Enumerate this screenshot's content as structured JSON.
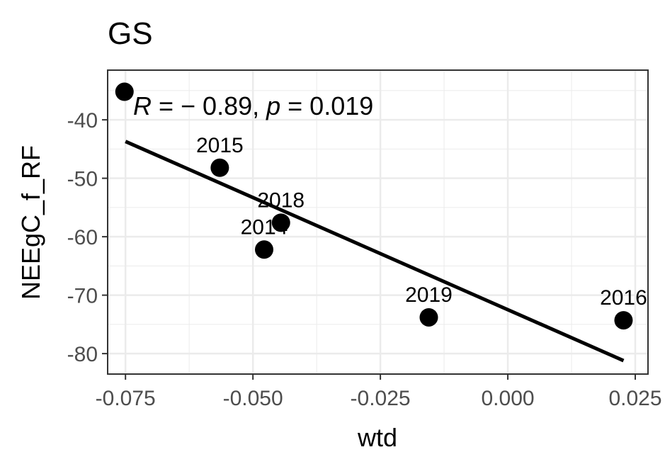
{
  "chart_data": {
    "type": "scatter",
    "title": "GS",
    "xlabel": "wtd",
    "ylabel": "NEEgC_f_RF",
    "xlim": [
      -0.0785,
      0.0275
    ],
    "ylim": [
      -83.5,
      -31.5
    ],
    "x_ticks": [
      -0.075,
      -0.05,
      -0.025,
      0.0,
      0.025
    ],
    "x_tick_labels": [
      "-0.075",
      "-0.050",
      "-0.025",
      "0.000",
      "0.025"
    ],
    "y_ticks": [
      -80,
      -70,
      -60,
      -50,
      -40
    ],
    "y_tick_labels": [
      "-80",
      "-70",
      "-60",
      "-50",
      "-40"
    ],
    "grid": true,
    "points": [
      {
        "x": -0.0752,
        "y": -35.2,
        "label": ""
      },
      {
        "x": -0.0565,
        "y": -48.2,
        "label": "2015"
      },
      {
        "x": -0.0445,
        "y": -57.6,
        "label": "2018"
      },
      {
        "x": -0.0478,
        "y": -62.2,
        "label": "2014"
      },
      {
        "x": -0.0155,
        "y": -73.8,
        "label": "2019"
      },
      {
        "x": 0.0227,
        "y": -74.3,
        "label": "2016"
      }
    ],
    "regression_line": {
      "x": [
        -0.075,
        0.0227
      ],
      "y": [
        -43.7,
        -81.2
      ]
    },
    "annotation": {
      "r_symbol": "R",
      "r_text": " = − 0.89, ",
      "p_symbol": "p",
      "p_text": " = 0.019"
    },
    "colors": {
      "points": "#000000",
      "line": "#000000",
      "grid": "#ebebeb",
      "panel_border": "#333333",
      "tick_text": "#4d4d4d"
    }
  }
}
